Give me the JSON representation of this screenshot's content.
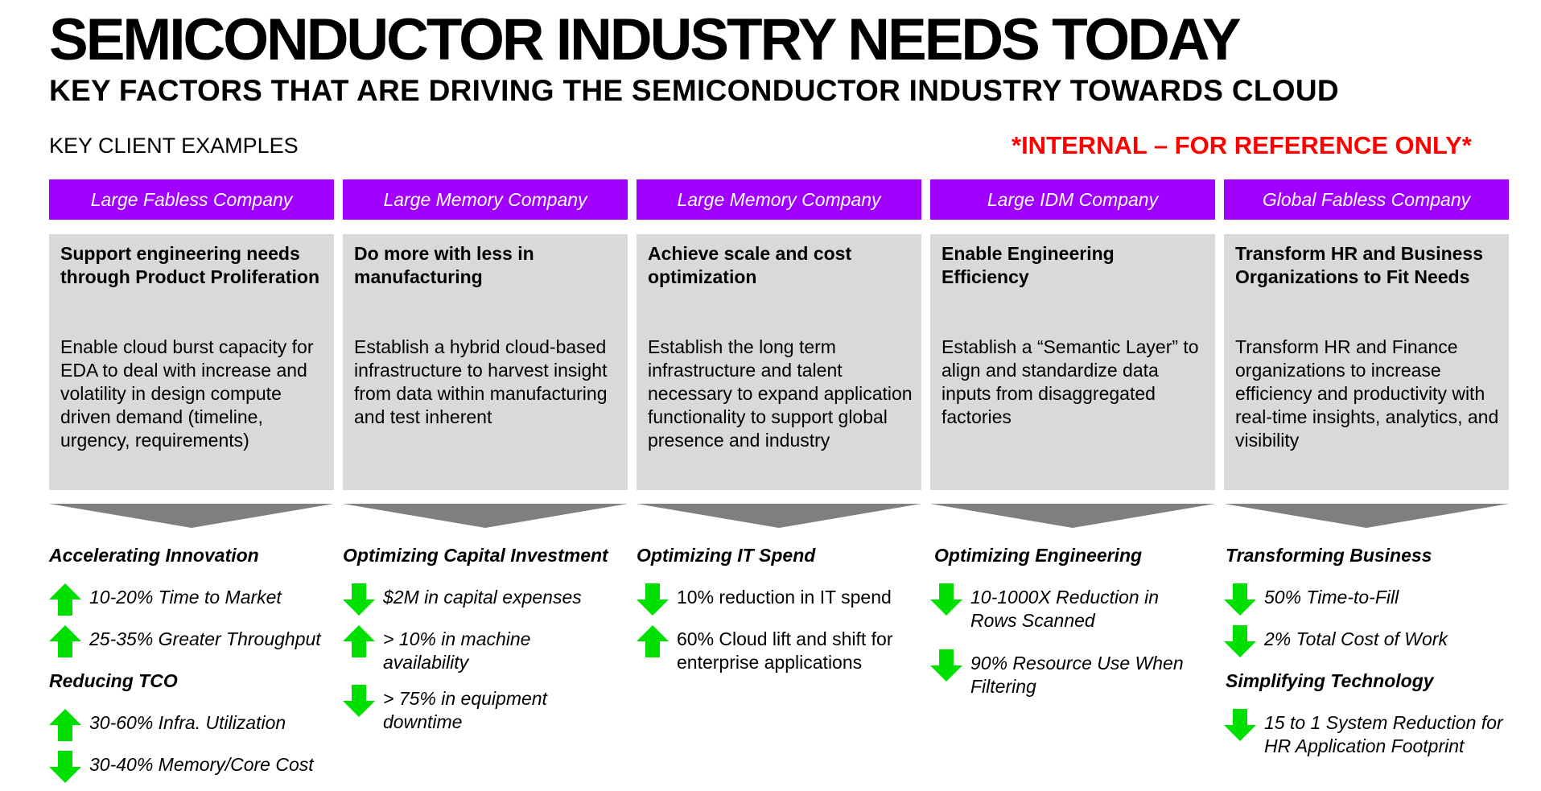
{
  "title": "SEMICONDUCTOR INDUSTRY NEEDS TODAY",
  "subtitle": "KEY FACTORS THAT ARE DRIVING THE SEMICONDUCTOR INDUSTRY TOWARDS CLOUD",
  "section_label": "KEY CLIENT EXAMPLES",
  "internal_note": "*INTERNAL – FOR REFERENCE ONLY*",
  "colors": {
    "accent_purple": "#a100ff",
    "card_gray": "#d9d9d9",
    "chevron_gray": "#7f7f7f",
    "arrow_green": "#00e000",
    "internal_red": "#ff0000"
  },
  "columns": [
    {
      "company": "Large Fabless Company",
      "need_title": "Support engineering needs through Product Proliferation",
      "need_desc": "Enable cloud burst capacity for EDA to deal with increase and volatility in design compute driven demand (timeline, urgency, requirements)",
      "sections": [
        {
          "heading": "Accelerating Innovation",
          "metrics": [
            {
              "direction": "up",
              "text": "10-20% Time to Market"
            },
            {
              "direction": "up",
              "text": "25-35% Greater Throughput"
            }
          ]
        },
        {
          "heading": "Reducing TCO",
          "metrics": [
            {
              "direction": "up",
              "text": "30-60% Infra. Utilization"
            },
            {
              "direction": "down",
              "text": "30-40% Memory/Core Cost"
            }
          ]
        }
      ]
    },
    {
      "company": "Large Memory Company",
      "need_title": "Do more with less in manufacturing",
      "need_desc": "Establish a hybrid cloud-based infrastructure to harvest insight from data within manufacturing and test inherent",
      "sections": [
        {
          "heading": "Optimizing Capital Investment",
          "metrics": [
            {
              "direction": "down",
              "text": "$2M in capital expenses"
            },
            {
              "direction": "up",
              "text": "> 10% in machine availability"
            },
            {
              "direction": "down",
              "text": "> 75% in equipment downtime"
            }
          ]
        }
      ]
    },
    {
      "company": "Large Memory Company",
      "need_title": "Achieve scale and cost optimization",
      "need_desc": "Establish the long term infrastructure and talent necessary to expand application functionality to support global presence and industry",
      "sections": [
        {
          "heading": "Optimizing IT Spend",
          "metrics": [
            {
              "direction": "down",
              "text": "10% reduction in IT spend"
            },
            {
              "direction": "up",
              "text": "60% Cloud lift and shift for enterprise applications"
            }
          ]
        }
      ]
    },
    {
      "company": "Large IDM Company",
      "need_title": "Enable Engineering Efficiency",
      "need_desc": "Establish a “Semantic Layer” to align and standardize data inputs from disaggregated factories",
      "sections": [
        {
          "heading": "Optimizing Engineering",
          "metrics": [
            {
              "direction": "down",
              "text": "10-1000X Reduction in Rows Scanned"
            },
            {
              "direction": "down",
              "text": "90% Resource Use When Filtering"
            }
          ]
        }
      ]
    },
    {
      "company": "Global Fabless Company",
      "need_title": "Transform HR and Business Organizations to Fit Needs",
      "need_desc": "Transform HR and Finance organizations to increase efficiency and productivity with real-time insights, analytics, and visibility",
      "sections": [
        {
          "heading": "Transforming Business",
          "metrics": [
            {
              "direction": "down",
              "text": "50% Time-to-Fill"
            },
            {
              "direction": "down",
              "text": "2% Total Cost of Work"
            }
          ]
        },
        {
          "heading": "Simplifying Technology",
          "metrics": [
            {
              "direction": "down",
              "text": "15 to 1 System Reduction for HR Application Footprint"
            }
          ]
        }
      ]
    }
  ]
}
